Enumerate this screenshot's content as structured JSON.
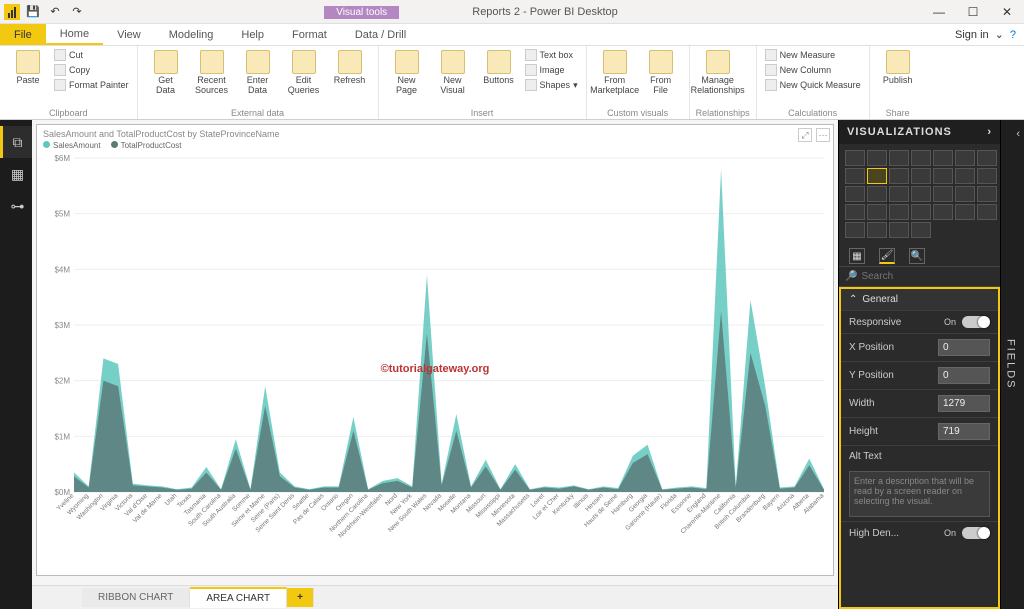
{
  "window": {
    "title": "Reports 2 - Power BI Desktop",
    "tools_badge": "Visual tools",
    "signin": "Sign in"
  },
  "qat": {
    "save": "💾",
    "undo": "↶",
    "redo": "↷"
  },
  "tabs": {
    "file": "File",
    "home": "Home",
    "view": "View",
    "modeling": "Modeling",
    "help": "Help",
    "format": "Format",
    "datadrill": "Data / Drill"
  },
  "ribbon": {
    "clipboard": {
      "label": "Clipboard",
      "paste": "Paste",
      "cut": "Cut",
      "copy": "Copy",
      "fp": "Format Painter"
    },
    "external": {
      "label": "External data",
      "get": "Get\nData",
      "recent": "Recent\nSources",
      "enter": "Enter\nData",
      "edit": "Edit\nQueries",
      "refresh": "Refresh"
    },
    "insert": {
      "label": "Insert",
      "newpage": "New\nPage",
      "newvisual": "New\nVisual",
      "buttons": "Buttons",
      "textbox": "Text box",
      "image": "Image",
      "shapes": "Shapes"
    },
    "custom": {
      "label": "Custom visuals",
      "market": "From\nMarketplace",
      "file": "From\nFile"
    },
    "rel": {
      "label": "Relationships",
      "manage": "Manage\nRelationships"
    },
    "calc": {
      "label": "Calculations",
      "nm": "New Measure",
      "nc": "New Column",
      "nq": "New Quick Measure"
    },
    "share": {
      "label": "Share",
      "publish": "Publish"
    }
  },
  "leftnav": {
    "report": "⧉",
    "data": "▦",
    "model": "⊶"
  },
  "visual": {
    "title": "SalesAmount and TotalProductCost by StateProvinceName",
    "legend_a": "SalesAmount",
    "legend_b": "TotalProductCost",
    "color_a": "#5fc8bd",
    "color_b": "#5a7a7a",
    "watermark": "©tutorialgateway.org",
    "yticks": [
      "$0M",
      "$1M",
      "$2M",
      "$3M",
      "$4M",
      "$5M",
      "$6M"
    ],
    "ymax": 6,
    "categories": [
      "Yveline",
      "Wyoming",
      "Washington",
      "Virginia",
      "Victoria",
      "Val d'Oise",
      "Val de Marne",
      "Utah",
      "Texas",
      "Tasmania",
      "South Carolina",
      "South Australia",
      "Somme",
      "Seine et Marne",
      "Seine (Paris)",
      "Seine Saint Denis",
      "Seattle",
      "Pas de Calais",
      "Ontario",
      "Oregon",
      "Northern Carolina",
      "Nordrhein-Westfalen",
      "Nord",
      "New York",
      "New South Wales",
      "Nevada",
      "Moselle",
      "Montana",
      "Missouri",
      "Mississippi",
      "Minnesota",
      "Massachusetts",
      "Loiret",
      "Loir et Cher",
      "Kentucky",
      "Illinois",
      "Hessen",
      "Hauts de Seine",
      "Hamburg",
      "Georgia",
      "Garonne (Haute)",
      "Florida",
      "Essonne",
      "England",
      "Charente-Maritime",
      "California",
      "British Columbia",
      "Brandenburg",
      "Bayern",
      "Arizona",
      "Alberta",
      "Alabama"
    ],
    "series_a": [
      0.35,
      0.1,
      2.4,
      2.3,
      0.15,
      0.12,
      0.1,
      0.05,
      0.08,
      0.45,
      0.05,
      0.95,
      0.05,
      1.9,
      0.35,
      0.1,
      0.05,
      0.1,
      0.1,
      1.35,
      0.05,
      0.2,
      0.25,
      0.1,
      3.9,
      0.15,
      1.4,
      0.1,
      0.58,
      0.05,
      0.5,
      0.05,
      0.1,
      0.08,
      0.12,
      0.05,
      0.1,
      0.07,
      0.65,
      0.85,
      0.05,
      0.08,
      0.1,
      0.07,
      5.8,
      0.1,
      3.45,
      1.9,
      0.08,
      0.1,
      0.6,
      0.05
    ],
    "series_b": [
      0.28,
      0.08,
      2.0,
      1.9,
      0.12,
      0.1,
      0.08,
      0.04,
      0.06,
      0.35,
      0.04,
      0.78,
      0.04,
      1.55,
      0.28,
      0.08,
      0.04,
      0.08,
      0.08,
      1.1,
      0.04,
      0.16,
      0.2,
      0.08,
      2.85,
      0.12,
      1.1,
      0.08,
      0.46,
      0.04,
      0.4,
      0.04,
      0.08,
      0.06,
      0.1,
      0.04,
      0.08,
      0.05,
      0.52,
      0.68,
      0.04,
      0.06,
      0.08,
      0.05,
      3.25,
      0.08,
      2.5,
      1.55,
      0.06,
      0.08,
      0.48,
      0.04
    ]
  },
  "page_tabs": {
    "ribbon": "RIBBON CHART",
    "area": "AREA CHART",
    "add": "+"
  },
  "viz_pane": {
    "title": "VISUALIZATIONS",
    "search": "Search",
    "general": "General",
    "responsive": "Responsive",
    "on": "On",
    "xpos": "X Position",
    "xpos_v": "0",
    "ypos": "Y Position",
    "ypos_v": "0",
    "width": "Width",
    "width_v": "1279",
    "height": "Height",
    "height_v": "719",
    "alt": "Alt Text",
    "alt_ph": "Enter a description that will be read by a screen reader on selecting the visual.",
    "highden": "High Den..."
  },
  "fields_pane": "FIELDS"
}
